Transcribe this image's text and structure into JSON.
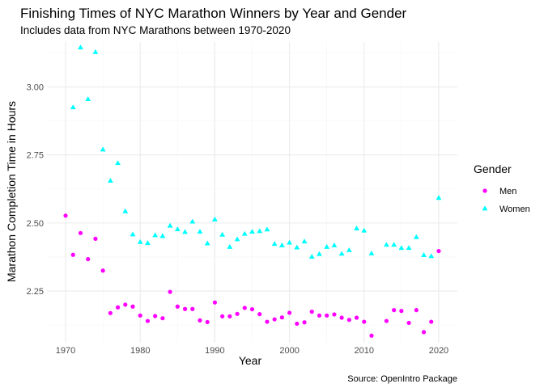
{
  "chart_data": {
    "type": "scatter",
    "title": "Finishing Times of NYC Marathon Winners by Year and Gender",
    "subtitle": "Includes data from NYC Marathons between 1970-2020",
    "xlabel": "Year",
    "ylabel": "Marathon Completion Time in Hours",
    "caption": "Source: OpenIntro Package",
    "xlim": [
      1967.5,
      2022.5
    ],
    "ylim": [
      2.06,
      3.165
    ],
    "x_ticks": [
      1970,
      1980,
      1990,
      2000,
      2010,
      2020
    ],
    "y_ticks": [
      2.25,
      2.5,
      2.75,
      3.0
    ],
    "y_tick_labels": [
      "2.25",
      "2.50",
      "2.75",
      "3.00"
    ],
    "grid": true,
    "legend": {
      "title": "Gender",
      "position": "right"
    },
    "series": [
      {
        "name": "Men",
        "color": "#ff00ff",
        "shape": "circle",
        "x": [
          1970,
          1971,
          1972,
          1973,
          1974,
          1975,
          1976,
          1977,
          1978,
          1979,
          1980,
          1981,
          1982,
          1983,
          1984,
          1985,
          1986,
          1987,
          1988,
          1989,
          1990,
          1991,
          1992,
          1993,
          1994,
          1995,
          1996,
          1997,
          1998,
          1999,
          2000,
          2001,
          2002,
          2003,
          2004,
          2005,
          2006,
          2007,
          2008,
          2009,
          2010,
          2011,
          2013,
          2014,
          2015,
          2016,
          2017,
          2018,
          2019,
          2020
        ],
        "y": [
          2.527,
          2.383,
          2.463,
          2.367,
          2.442,
          2.325,
          2.169,
          2.19,
          2.2,
          2.193,
          2.16,
          2.14,
          2.158,
          2.15,
          2.247,
          2.193,
          2.184,
          2.184,
          2.142,
          2.136,
          2.208,
          2.157,
          2.157,
          2.166,
          2.188,
          2.183,
          2.165,
          2.137,
          2.146,
          2.153,
          2.17,
          2.13,
          2.135,
          2.174,
          2.16,
          2.16,
          2.164,
          2.152,
          2.144,
          2.152,
          2.137,
          2.086,
          2.14,
          2.18,
          2.177,
          2.133,
          2.18,
          2.099,
          2.137,
          2.397
        ]
      },
      {
        "name": "Women",
        "color": "#00ffff",
        "shape": "triangle",
        "x": [
          1971,
          1972,
          1973,
          1974,
          1975,
          1976,
          1977,
          1978,
          1979,
          1980,
          1981,
          1982,
          1983,
          1984,
          1985,
          1986,
          1987,
          1988,
          1989,
          1990,
          1991,
          1992,
          1993,
          1994,
          1995,
          1996,
          1997,
          1998,
          1999,
          2000,
          2001,
          2002,
          2003,
          2004,
          2005,
          2006,
          2007,
          2008,
          2009,
          2010,
          2011,
          2013,
          2014,
          2015,
          2016,
          2017,
          2018,
          2019,
          2020
        ],
        "y": [
          2.925,
          3.145,
          2.955,
          3.128,
          2.77,
          2.655,
          2.72,
          2.543,
          2.458,
          2.43,
          2.426,
          2.455,
          2.452,
          2.49,
          2.477,
          2.467,
          2.505,
          2.468,
          2.425,
          2.513,
          2.457,
          2.412,
          2.44,
          2.46,
          2.468,
          2.47,
          2.476,
          2.423,
          2.418,
          2.428,
          2.41,
          2.432,
          2.376,
          2.386,
          2.412,
          2.418,
          2.387,
          2.4,
          2.48,
          2.472,
          2.388,
          2.42,
          2.42,
          2.408,
          2.408,
          2.448,
          2.382,
          2.378,
          2.592
        ]
      }
    ]
  }
}
